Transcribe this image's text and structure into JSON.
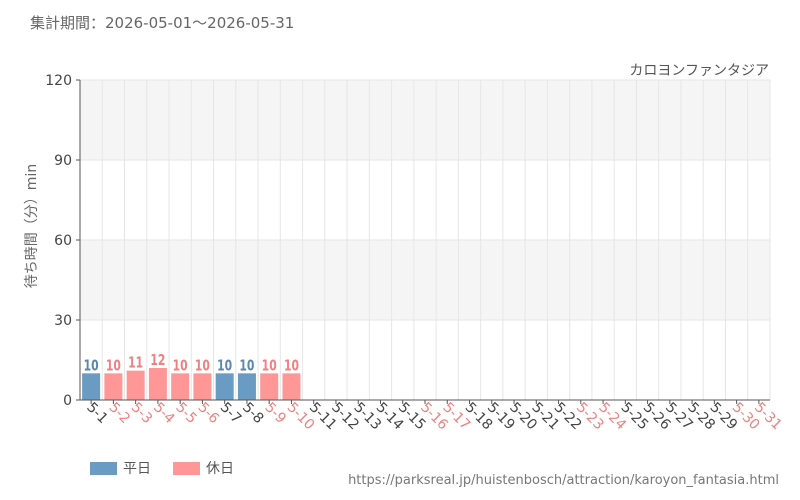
{
  "header": {
    "period_label": "集計期間：2026-05-01～2026-05-31"
  },
  "colors": {
    "weekday": "#6a9bc3",
    "holiday": "#ff9797",
    "weekday_label": "#5b87ab",
    "holiday_label": "#f08080",
    "band": "#f5f5f5",
    "grid": "#e6e6e6",
    "axis": "#555555"
  },
  "legend": {
    "weekday": "平日",
    "holiday": "休日"
  },
  "source_url": "https://parksreal.jp/huistenbosch/attraction/karoyon_fantasia.html",
  "chart_data": {
    "type": "bar",
    "title": "カロヨンファンタジア",
    "ylabel": "待ち時間（分）min",
    "xlabel": "",
    "ylim": [
      0,
      120
    ],
    "yticks": [
      0,
      30,
      60,
      90,
      120
    ],
    "grid": true,
    "legend_position": "bottom-left",
    "categories": [
      "5-1",
      "5-2",
      "5-3",
      "5-4",
      "5-5",
      "5-6",
      "5-7",
      "5-8",
      "5-9",
      "5-10",
      "5-11",
      "5-12",
      "5-13",
      "5-14",
      "5-15",
      "5-16",
      "5-17",
      "5-18",
      "5-19",
      "5-20",
      "5-21",
      "5-22",
      "5-23",
      "5-24",
      "5-25",
      "5-26",
      "5-27",
      "5-28",
      "5-29",
      "5-30",
      "5-31"
    ],
    "day_type": [
      "weekday",
      "holiday",
      "holiday",
      "holiday",
      "holiday",
      "holiday",
      "weekday",
      "weekday",
      "holiday",
      "holiday",
      "weekday",
      "weekday",
      "weekday",
      "weekday",
      "weekday",
      "holiday",
      "holiday",
      "weekday",
      "weekday",
      "weekday",
      "weekday",
      "weekday",
      "holiday",
      "holiday",
      "weekday",
      "weekday",
      "weekday",
      "weekday",
      "weekday",
      "holiday",
      "holiday"
    ],
    "values": [
      10,
      10,
      11,
      12,
      10,
      10,
      10,
      10,
      10,
      10,
      null,
      null,
      null,
      null,
      null,
      null,
      null,
      null,
      null,
      null,
      null,
      null,
      null,
      null,
      null,
      null,
      null,
      null,
      null,
      null,
      null
    ]
  }
}
